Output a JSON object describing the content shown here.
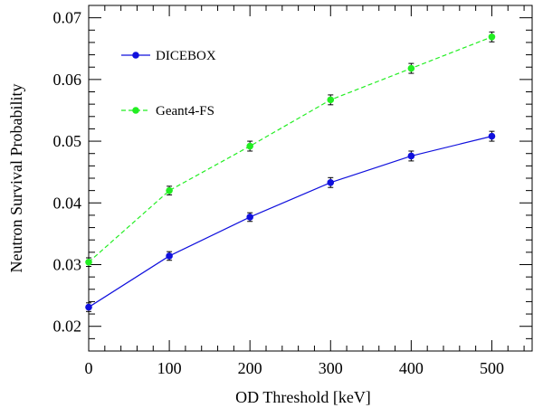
{
  "chart_data": {
    "type": "line",
    "title": "",
    "xlabel": "OD Threshold [keV]",
    "ylabel": "Neutron Survival Probability",
    "xlim": [
      0,
      550
    ],
    "ylim": [
      0.016,
      0.072
    ],
    "xticks": [
      0,
      100,
      200,
      300,
      400,
      500
    ],
    "xtick_labels": [
      "0",
      "100",
      "200",
      "300",
      "400",
      "500"
    ],
    "yticks": [
      0.02,
      0.03,
      0.04,
      0.05,
      0.06,
      0.07
    ],
    "ytick_labels": [
      "0.02",
      "0.03",
      "0.04",
      "0.05",
      "0.06",
      "0.07"
    ],
    "grid": false,
    "legend_position": "top-left",
    "series": [
      {
        "name": "DICEBOX",
        "color": "#1010dd",
        "line_style": "solid",
        "x": [
          0,
          100,
          200,
          300,
          400,
          500
        ],
        "y": [
          0.0231,
          0.0314,
          0.0377,
          0.0433,
          0.0476,
          0.0508
        ],
        "yerr": [
          0.0007,
          0.0007,
          0.0007,
          0.0008,
          0.0008,
          0.0008
        ]
      },
      {
        "name": "Geant4-FS",
        "color": "#22ee22",
        "line_style": "dashed",
        "x": [
          0,
          100,
          200,
          300,
          400,
          500
        ],
        "y": [
          0.0304,
          0.042,
          0.0492,
          0.0567,
          0.0618,
          0.0669
        ],
        "yerr": [
          0.0007,
          0.0007,
          0.0008,
          0.0008,
          0.0008,
          0.0008
        ]
      }
    ]
  }
}
